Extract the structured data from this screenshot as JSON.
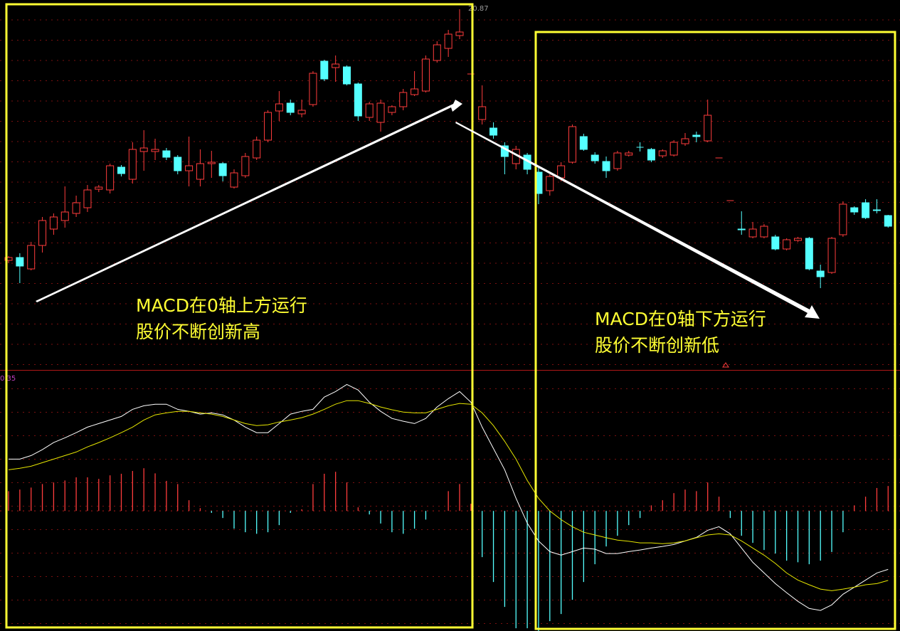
{
  "chart_data": [
    {
      "type": "candlestick",
      "up_color": "#ff3c3c",
      "down_color": "#54ffff",
      "ylim": [
        15.8,
        21.0
      ],
      "open": [
        17.34,
        17.38,
        17.22,
        17.55,
        17.78,
        17.9,
        18.0,
        18.08,
        18.34,
        18.33,
        18.65,
        18.48,
        18.87,
        18.87,
        18.88,
        18.79,
        18.6,
        18.48,
        18.7,
        18.7,
        18.37,
        18.53,
        18.78,
        19.03,
        19.44,
        19.55,
        19.4,
        19.53,
        20.14,
        20.05,
        20.06,
        19.82,
        19.35,
        19.28,
        19.42,
        19.5,
        19.67,
        19.72,
        20.15,
        20.32,
        20.5,
        19.96,
        19.32,
        19.2,
        18.95,
        18.7,
        18.82,
        18.58,
        18.32,
        18.5,
        18.72,
        19.08,
        18.82,
        18.73,
        18.63,
        18.82,
        18.93,
        18.9,
        18.81,
        18.82,
        18.98,
        19.1,
        19.02,
        18.78,
        18.18,
        17.78,
        17.67,
        17.67,
        17.67,
        17.5,
        17.62,
        17.65,
        17.19,
        17.17,
        17.7,
        18.08,
        18.15,
        18.05,
        17.97
      ],
      "close": [
        17.38,
        17.26,
        17.55,
        17.9,
        17.95,
        18.02,
        18.15,
        18.33,
        18.37,
        18.67,
        18.56,
        18.9,
        18.92,
        18.9,
        18.79,
        18.6,
        18.67,
        18.7,
        18.72,
        18.53,
        18.57,
        18.8,
        19.03,
        19.42,
        19.54,
        19.42,
        19.45,
        19.97,
        19.89,
        20.1,
        19.82,
        19.37,
        19.54,
        19.55,
        19.5,
        19.7,
        19.75,
        20.17,
        20.37,
        20.52,
        20.55,
        19.96,
        19.5,
        19.1,
        18.8,
        18.9,
        18.62,
        18.28,
        18.52,
        18.67,
        19.22,
        18.9,
        18.74,
        18.6,
        18.85,
        18.85,
        18.92,
        18.75,
        18.88,
        19.0,
        19.05,
        19.08,
        19.38,
        18.78,
        18.18,
        17.77,
        17.78,
        17.82,
        17.5,
        17.63,
        17.65,
        17.22,
        17.11,
        17.65,
        18.13,
        18.02,
        17.94,
        18.04,
        17.82
      ],
      "high": [
        17.4,
        17.44,
        17.6,
        17.95,
        18.0,
        18.38,
        18.25,
        18.4,
        18.4,
        18.7,
        18.68,
        19.0,
        19.17,
        19.05,
        18.92,
        18.82,
        19.08,
        18.9,
        18.88,
        18.72,
        18.62,
        18.85,
        19.08,
        19.45,
        19.72,
        19.6,
        19.6,
        20.0,
        20.16,
        20.22,
        20.08,
        19.84,
        19.57,
        19.6,
        19.52,
        19.75,
        20.0,
        20.22,
        20.42,
        20.58,
        20.87,
        19.96,
        19.8,
        19.28,
        19.0,
        18.95,
        18.85,
        18.65,
        18.55,
        18.72,
        19.25,
        19.12,
        18.86,
        18.8,
        18.88,
        18.88,
        19.0,
        18.92,
        18.9,
        19.03,
        19.13,
        19.15,
        19.6,
        18.78,
        18.18,
        18.03,
        17.88,
        17.85,
        17.7,
        17.65,
        17.67,
        17.67,
        17.28,
        17.67,
        18.17,
        18.1,
        18.2,
        18.2,
        17.98
      ],
      "low": [
        17.3,
        17.02,
        17.2,
        17.45,
        17.7,
        17.8,
        17.95,
        18.02,
        18.3,
        18.28,
        18.52,
        18.42,
        18.6,
        18.75,
        18.75,
        18.55,
        18.38,
        18.38,
        18.5,
        18.45,
        18.35,
        18.5,
        18.75,
        19.0,
        19.3,
        19.38,
        19.35,
        19.5,
        19.86,
        19.85,
        19.8,
        19.3,
        19.3,
        19.15,
        19.38,
        19.45,
        19.65,
        19.7,
        20.12,
        20.2,
        20.45,
        19.96,
        19.25,
        19.05,
        18.55,
        18.62,
        18.55,
        18.13,
        18.25,
        18.45,
        18.7,
        18.88,
        18.7,
        18.5,
        18.6,
        18.8,
        18.87,
        18.72,
        18.78,
        18.8,
        18.95,
        19.0,
        19.0,
        18.78,
        18.18,
        17.7,
        17.65,
        17.65,
        17.48,
        17.48,
        17.6,
        17.2,
        16.95,
        17.15,
        17.67,
        17.98,
        17.92,
        18.0,
        17.8
      ],
      "annotations": [
        "MACD在0轴上方运行",
        "股价不断创新高",
        "MACD在0轴下方运行",
        "股价不断创新低"
      ]
    },
    {
      "type": "macd",
      "ylim": [
        -0.304,
        0.355
      ],
      "yticks": [
        0.35
      ],
      "up_color": "#ff3c3c",
      "down_color": "#54ffff",
      "histogram": [
        0.05,
        0.054,
        0.059,
        0.068,
        0.072,
        0.077,
        0.085,
        0.085,
        0.081,
        0.09,
        0.094,
        0.101,
        0.108,
        0.095,
        0.076,
        0.068,
        0.027,
        0.007,
        -0.005,
        -0.018,
        -0.045,
        -0.054,
        -0.058,
        -0.054,
        -0.036,
        -0.005,
        0.004,
        0.068,
        0.094,
        0.099,
        0.072,
        0.009,
        -0.009,
        -0.032,
        -0.054,
        -0.058,
        -0.045,
        -0.022,
        0,
        0.05,
        0.068,
        0.018,
        -0.117,
        -0.18,
        -0.243,
        -0.297,
        -0.297,
        -0.304,
        -0.279,
        -0.261,
        -0.225,
        -0.18,
        -0.135,
        -0.09,
        -0.063,
        -0.036,
        -0.018,
        0.014,
        0.027,
        0.045,
        0.054,
        0.05,
        0.072,
        0.036,
        -0.018,
        -0.063,
        -0.081,
        -0.099,
        -0.108,
        -0.126,
        -0.13,
        -0.135,
        -0.126,
        -0.104,
        -0.054,
        0.014,
        0.036,
        0.058,
        0.063
      ],
      "series": [
        {
          "color": "#ffffff",
          "values": [
            0.131,
            0.131,
            0.14,
            0.155,
            0.173,
            0.185,
            0.198,
            0.212,
            0.221,
            0.23,
            0.239,
            0.257,
            0.266,
            0.27,
            0.27,
            0.257,
            0.252,
            0.245,
            0.248,
            0.243,
            0.23,
            0.212,
            0.198,
            0.198,
            0.221,
            0.245,
            0.252,
            0.257,
            0.288,
            0.302,
            0.32,
            0.306,
            0.275,
            0.252,
            0.234,
            0.227,
            0.221,
            0.234,
            0.263,
            0.284,
            0.302,
            0.275,
            0.212,
            0.158,
            0.104,
            0.032,
            -0.031,
            -0.076,
            -0.103,
            -0.112,
            -0.103,
            -0.094,
            -0.097,
            -0.108,
            -0.108,
            -0.103,
            -0.099,
            -0.094,
            -0.09,
            -0.085,
            -0.076,
            -0.067,
            -0.049,
            -0.04,
            -0.058,
            -0.094,
            -0.13,
            -0.157,
            -0.184,
            -0.207,
            -0.229,
            -0.247,
            -0.252,
            -0.238,
            -0.211,
            -0.193,
            -0.175,
            -0.157,
            -0.148
          ]
        },
        {
          "color": "#e6e600",
          "values": [
            0.104,
            0.108,
            0.113,
            0.122,
            0.131,
            0.14,
            0.149,
            0.162,
            0.173,
            0.185,
            0.198,
            0.212,
            0.23,
            0.243,
            0.248,
            0.252,
            0.252,
            0.248,
            0.245,
            0.239,
            0.23,
            0.221,
            0.216,
            0.218,
            0.225,
            0.23,
            0.236,
            0.245,
            0.257,
            0.27,
            0.279,
            0.279,
            0.272,
            0.263,
            0.256,
            0.25,
            0.248,
            0.248,
            0.257,
            0.266,
            0.272,
            0.27,
            0.248,
            0.216,
            0.176,
            0.131,
            0.077,
            0.032,
            0,
            -0.022,
            -0.04,
            -0.054,
            -0.061,
            -0.068,
            -0.074,
            -0.077,
            -0.081,
            -0.081,
            -0.083,
            -0.081,
            -0.076,
            -0.068,
            -0.061,
            -0.058,
            -0.061,
            -0.076,
            -0.094,
            -0.112,
            -0.133,
            -0.157,
            -0.175,
            -0.187,
            -0.198,
            -0.202,
            -0.198,
            -0.193,
            -0.187,
            -0.184,
            -0.176
          ]
        }
      ]
    }
  ]
}
